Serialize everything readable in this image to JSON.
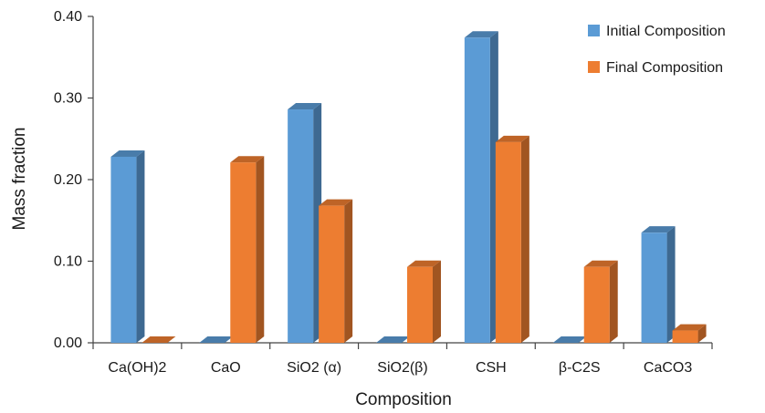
{
  "chart_data": {
    "type": "bar",
    "categories": [
      "Ca(OH)2",
      "CaO",
      "SiO2 (α)",
      "SiO2(β)",
      "CSH",
      "β-C2S",
      "CaCO3"
    ],
    "series": [
      {
        "name": "Initial Composition",
        "values": [
          0.228,
          0.0,
          0.286,
          0.0,
          0.374,
          0.0,
          0.135
        ],
        "color": "#5B9BD5"
      },
      {
        "name": "Final Composition",
        "values": [
          0.0,
          0.221,
          0.168,
          0.093,
          0.246,
          0.093,
          0.015
        ],
        "color": "#ED7D31"
      }
    ],
    "yticks": [
      "0.00",
      "0.10",
      "0.20",
      "0.30",
      "0.40"
    ],
    "xlabel": "Composition",
    "ylabel": "Mass fraction",
    "ylim": [
      0,
      0.4
    ],
    "legend_position": "top-right",
    "grid": false,
    "style": "3d-column"
  }
}
